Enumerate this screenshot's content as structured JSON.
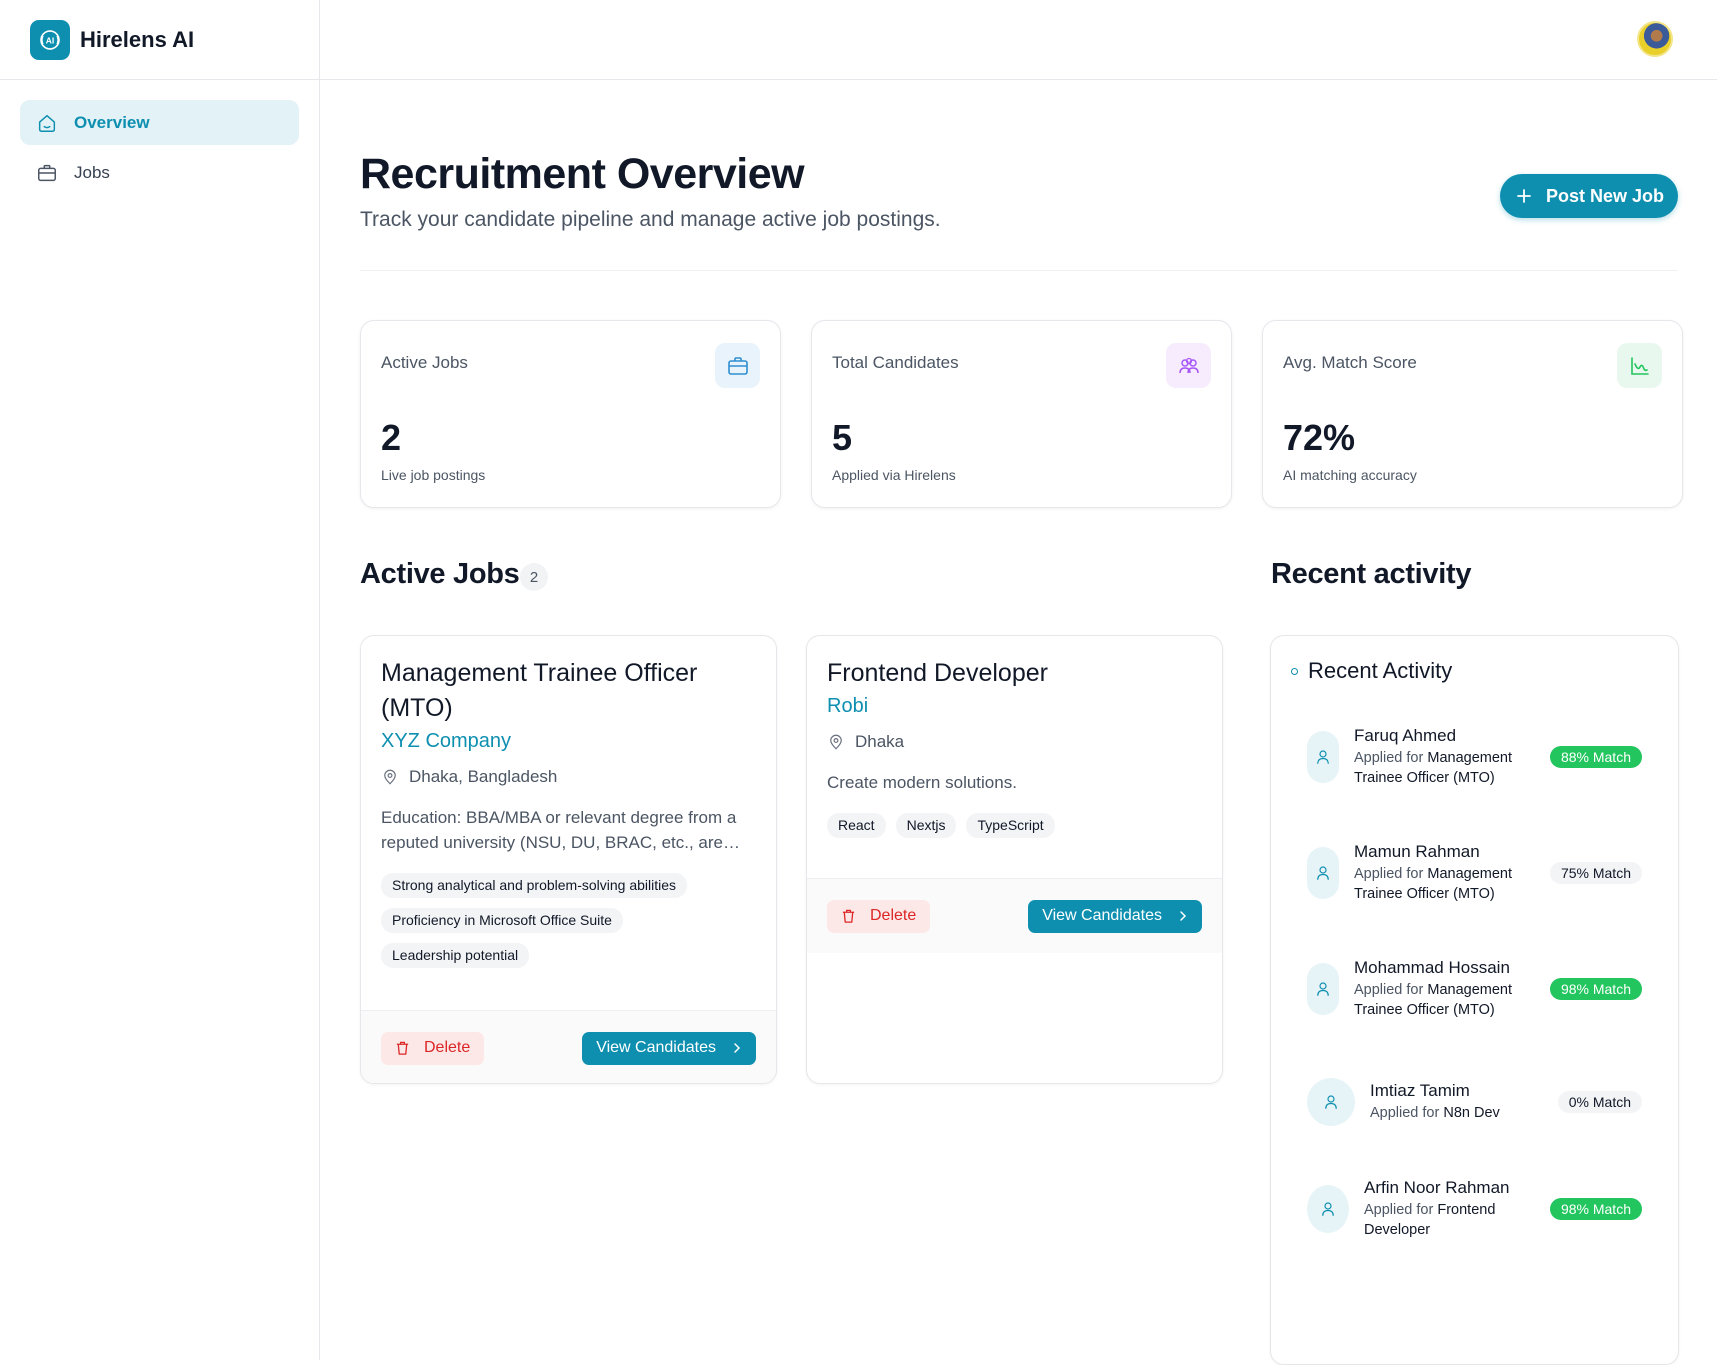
{
  "brand": {
    "name": "Hirelens AI",
    "logo_text": "AI"
  },
  "sidebar": {
    "items": [
      {
        "label": "Overview",
        "icon": "home-icon",
        "active": true
      },
      {
        "label": "Jobs",
        "icon": "briefcase-icon",
        "active": false
      }
    ]
  },
  "header": {
    "title": "Recruitment Overview",
    "subtitle": "Track your candidate pipeline and manage active job postings.",
    "post_button": "Post New Job"
  },
  "stats": [
    {
      "label": "Active Jobs",
      "value": "2",
      "caption": "Live job postings",
      "icon": "briefcase-icon",
      "color": "#2f8fd0"
    },
    {
      "label": "Total Candidates",
      "value": "5",
      "caption": "Applied via Hirelens",
      "icon": "users-icon",
      "color": "#a855f7"
    },
    {
      "label": "Avg. Match Score",
      "value": "72%",
      "caption": "AI matching accuracy",
      "icon": "chart-line-icon",
      "color": "#22c55e"
    }
  ],
  "active_jobs": {
    "title": "Active Jobs",
    "count": "2",
    "jobs": [
      {
        "title": "Management Trainee Officer (MTO)",
        "company": "XYZ Company",
        "location": "Dhaka, Bangladesh",
        "description": "Education: BBA/MBA or relevant degree from a reputed university (NSU, DU, BRAC, etc., are…",
        "tags": [
          "Strong analytical and problem-solving abilities",
          "Proficiency in Microsoft Office Suite",
          "Leadership potential"
        ],
        "delete_label": "Delete",
        "view_label": "View Candidates"
      },
      {
        "title": "Frontend Developer",
        "company": "Robi",
        "location": "Dhaka",
        "description": "Create modern solutions.",
        "tags": [
          "React",
          "Nextjs",
          "TypeScript"
        ],
        "delete_label": "Delete",
        "view_label": "View Candidates"
      }
    ]
  },
  "recent_activity": {
    "section_title": "Recent activity",
    "card_title": "Recent Activity",
    "applied_prefix": "Applied for",
    "items": [
      {
        "name": "Faruq Ahmed",
        "job": "Management Trainee Officer (MTO)",
        "match": "88% Match",
        "high": true
      },
      {
        "name": "Mamun Rahman",
        "job": "Management Trainee Officer (MTO)",
        "match": "75% Match",
        "high": false
      },
      {
        "name": "Mohammad Hossain",
        "job": "Management Trainee Officer (MTO)",
        "match": "98% Match",
        "high": true
      },
      {
        "name": "Imtiaz Tamim",
        "job": "N8n Dev",
        "match": "0% Match",
        "high": false
      },
      {
        "name": "Arfin Noor Rahman",
        "job": "Frontend Developer",
        "match": "98% Match",
        "high": true
      }
    ]
  }
}
